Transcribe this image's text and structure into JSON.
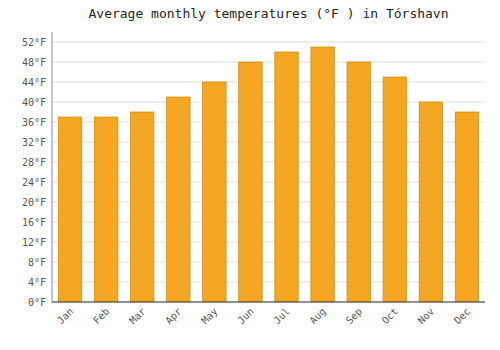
{
  "chart_data": {
    "type": "bar",
    "title": "Average monthly temperatures (°F ) in Tórshavn",
    "categories": [
      "Jan",
      "Feb",
      "Mar",
      "Apr",
      "May",
      "Jun",
      "Jul",
      "Aug",
      "Sep",
      "Oct",
      "Nov",
      "Dec"
    ],
    "values": [
      37,
      37,
      38,
      41,
      44,
      48,
      50,
      51,
      48,
      45,
      40,
      38
    ],
    "color": "#F5A623",
    "ylim": [
      0,
      54
    ],
    "yticks": [
      {
        "value": 0,
        "label": "0°F"
      },
      {
        "value": 4,
        "label": "4°F"
      },
      {
        "value": 8,
        "label": "8°F"
      },
      {
        "value": 12,
        "label": "12°F"
      },
      {
        "value": 16,
        "label": "16°F"
      },
      {
        "value": 20,
        "label": "20°F"
      },
      {
        "value": 24,
        "label": "24°F"
      },
      {
        "value": 28,
        "label": "28°F"
      },
      {
        "value": 32,
        "label": "32°F"
      },
      {
        "value": 36,
        "label": "36°F"
      },
      {
        "value": 40,
        "label": "40°F"
      },
      {
        "value": 44,
        "label": "44°F"
      },
      {
        "value": 48,
        "label": "48°F"
      },
      {
        "value": 52,
        "label": "52°F"
      }
    ],
    "grid": true
  }
}
